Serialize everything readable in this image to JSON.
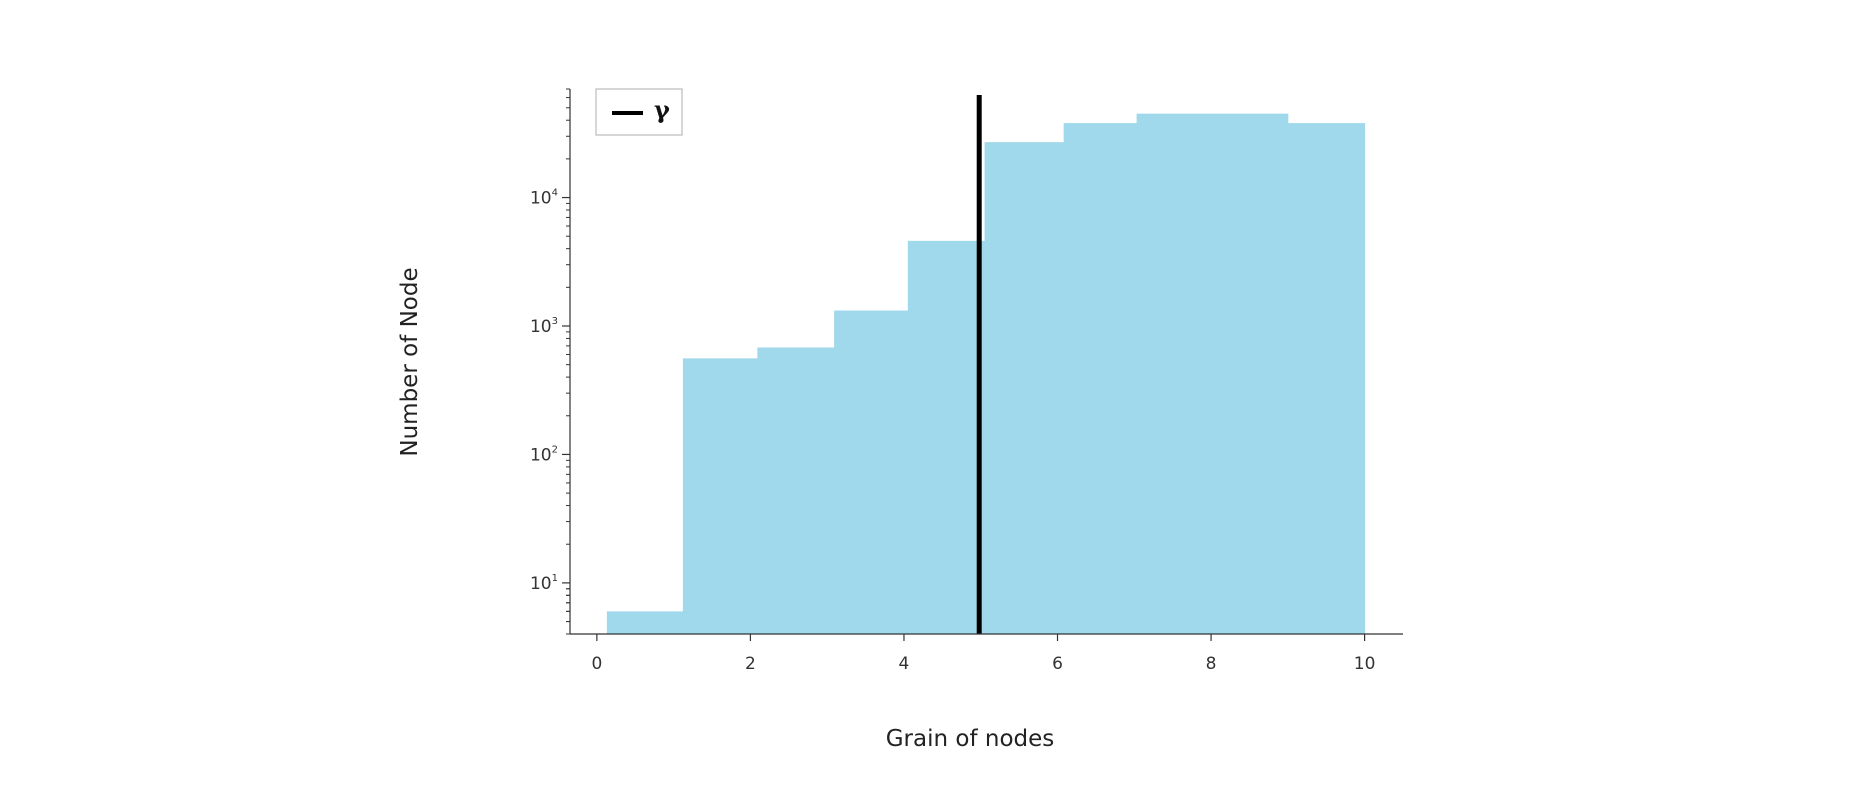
{
  "chart_data": {
    "type": "bar",
    "subtype": "histogram",
    "xlabel": "Grain of nodes",
    "ylabel": "Number of Node",
    "yscale": "log",
    "xlim": [
      -0.35,
      10.5
    ],
    "ylim": [
      4,
      70000
    ],
    "xticks": [
      0,
      2,
      4,
      6,
      8,
      10
    ],
    "xtick_labels": [
      "0",
      "2",
      "4",
      "6",
      "8",
      "10"
    ],
    "yticks": [
      10,
      100,
      1000,
      10000
    ],
    "ytick_labels": [
      {
        "base": "10",
        "exp": "1"
      },
      {
        "base": "10",
        "exp": "2"
      },
      {
        "base": "10",
        "exp": "3"
      },
      {
        "base": "10",
        "exp": "4"
      }
    ],
    "bins": [
      {
        "x0": 0.13,
        "x1": 1.12,
        "value": 6
      },
      {
        "x0": 1.12,
        "x1": 2.09,
        "value": 560
      },
      {
        "x0": 2.09,
        "x1": 3.09,
        "value": 680
      },
      {
        "x0": 3.09,
        "x1": 4.05,
        "value": 1320
      },
      {
        "x0": 4.05,
        "x1": 5.05,
        "value": 4600
      },
      {
        "x0": 5.05,
        "x1": 6.08,
        "value": 27000
      },
      {
        "x0": 6.08,
        "x1": 7.03,
        "value": 38000
      },
      {
        "x0": 7.03,
        "x1": 9.0,
        "value": 45000
      },
      {
        "x0": 9.0,
        "x1": 10.0,
        "value": 38000
      }
    ],
    "vline": {
      "x": 4.98,
      "label": "γ",
      "color": "#000000"
    },
    "bar_color": "#a0d9ec",
    "legend": {
      "position": "top-left",
      "entries": [
        "γ"
      ]
    },
    "grid": false
  }
}
